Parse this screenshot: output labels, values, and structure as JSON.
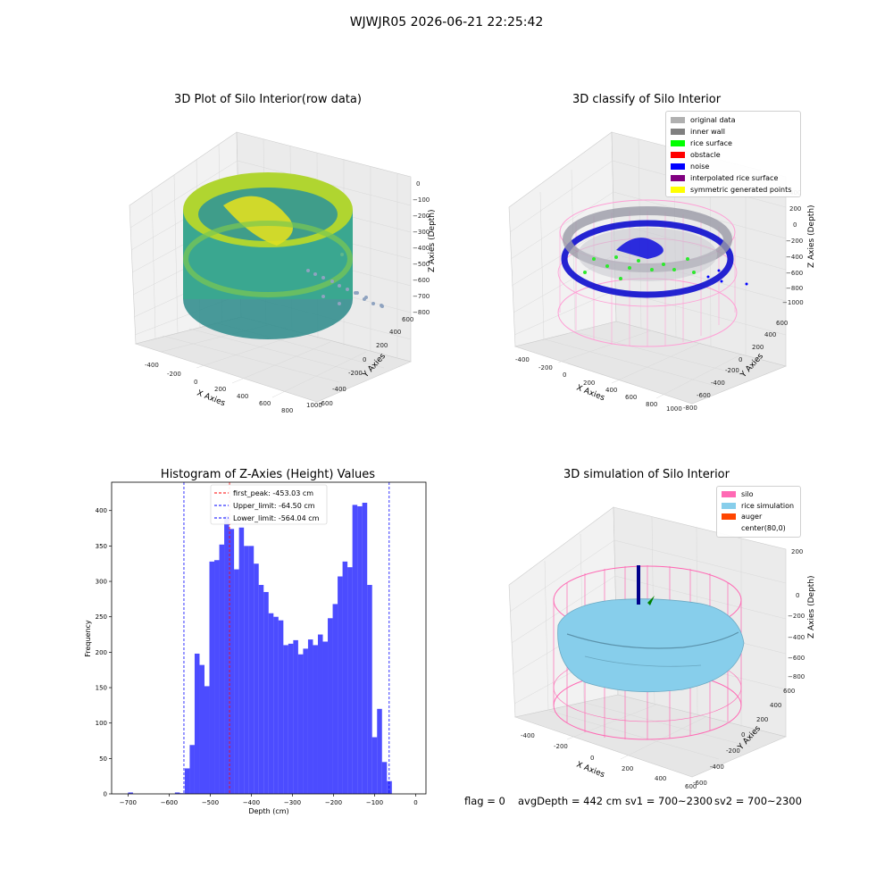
{
  "suptitle": "WJWJR05 2026-06-21 22:25:42",
  "panels": {
    "raw": {
      "title": "3D Plot of Silo Interior(row data)",
      "xlabel": "X Axies",
      "ylabel": "Y Axies",
      "zlabel": "Z Axies (Depth)",
      "xticks": [
        "-400",
        "-200",
        "0",
        "200",
        "400",
        "600",
        "800",
        "1000"
      ],
      "yticks": [
        "-600",
        "-400",
        "-200",
        "0",
        "200",
        "400",
        "600"
      ],
      "zticks": [
        "0",
        "−100",
        "−200",
        "−300",
        "−400",
        "−500",
        "−600",
        "−700",
        "−800"
      ]
    },
    "classify": {
      "title": "3D classify of Silo Interior",
      "xlabel": "X Axies",
      "ylabel": "Y Axies",
      "zlabel": "Z Axies (Depth)",
      "xticks": [
        "-400",
        "-200",
        "0",
        "200",
        "400",
        "600",
        "800",
        "1000"
      ],
      "yticks": [
        "-800",
        "-600",
        "-400",
        "-200",
        "0",
        "200",
        "400",
        "600"
      ],
      "zticks": [
        "400",
        "200",
        "0",
        "−200",
        "−400",
        "−600",
        "−800",
        "−1000"
      ],
      "legend": [
        {
          "label": "original data",
          "color": "#b0b0b0"
        },
        {
          "label": "inner wall",
          "color": "#808080"
        },
        {
          "label": "rice surface",
          "color": "#00ff00"
        },
        {
          "label": "obstacle",
          "color": "#ff0000"
        },
        {
          "label": "noise",
          "color": "#0000ff"
        },
        {
          "label": "interpolated rice surface",
          "color": "#800080"
        },
        {
          "label": "symmetric generated points",
          "color": "#ffff00"
        }
      ]
    },
    "sim": {
      "title": "3D simulation of Silo Interior",
      "xlabel": "X Axies",
      "ylabel": "Y Axies",
      "zlabel": "Z Axies (Depth)",
      "xticks": [
        "-400",
        "-200",
        "0",
        "200",
        "400",
        "600"
      ],
      "yticks": [
        "-600",
        "-400",
        "-200",
        "0",
        "200",
        "400",
        "600"
      ],
      "zticks": [
        "200",
        "0",
        "−200",
        "−400",
        "−600",
        "−800"
      ],
      "legend": [
        {
          "label": "silo",
          "color": "#ff69b4"
        },
        {
          "label": "rice simulation",
          "color": "#87ceeb"
        },
        {
          "label": "auger",
          "color": "#ff4500"
        },
        {
          "label": "center(80,0)",
          "color": ""
        }
      ]
    }
  },
  "stats": {
    "flag": "flag = 0",
    "avg": "avgDepth = 442 cm",
    "sv1": "sv1 = 700~2300",
    "sv2": "sv2 = 700~2300"
  },
  "chart_data": [
    {
      "type": "scatter",
      "title": "3D Plot of Silo Interior(row data)",
      "xlabel": "X Axies",
      "ylabel": "Y Axies",
      "zlabel": "Z Axies (Depth)",
      "xlim": [
        -500,
        1100
      ],
      "ylim": [
        -700,
        700
      ],
      "zlim": [
        -850,
        50
      ]
    },
    {
      "type": "scatter",
      "title": "3D classify of Silo Interior",
      "xlabel": "X Axies",
      "ylabel": "Y Axies",
      "zlabel": "Z Axies (Depth)",
      "xlim": [
        -500,
        1100
      ],
      "ylim": [
        -850,
        700
      ],
      "zlim": [
        -1050,
        450
      ]
    },
    {
      "type": "bar",
      "title": "Histogram of Z-Axies (Height) Values",
      "xlabel": "Depth (cm)",
      "ylabel": "Frequency",
      "xlim": [
        -740,
        25
      ],
      "ylim": [
        0,
        440
      ],
      "xticks": [
        -700,
        -600,
        -500,
        -400,
        -300,
        -200,
        -100,
        0
      ],
      "yticks": [
        0,
        50,
        100,
        150,
        200,
        250,
        300,
        350,
        400
      ],
      "color": "#0000ff",
      "bin_width": 12,
      "bin_starts": [
        -700,
        -586,
        -574,
        -562,
        -550,
        -538,
        -526,
        -514,
        -502,
        -490,
        -478,
        -466,
        -454,
        -442,
        -430,
        -418,
        -406,
        -394,
        -382,
        -370,
        -358,
        -346,
        -334,
        -322,
        -310,
        -298,
        -286,
        -274,
        -262,
        -250,
        -238,
        -226,
        -214,
        -202,
        -190,
        -178,
        -166,
        -154,
        -142,
        -130,
        -118,
        -106,
        -94,
        -82,
        -70,
        -58,
        -46,
        -34,
        -22,
        -10
      ],
      "values": [
        2,
        2,
        1,
        36,
        69,
        198,
        182,
        152,
        328,
        330,
        352,
        392,
        374,
        317,
        376,
        350,
        350,
        325,
        295,
        285,
        255,
        250,
        245,
        210,
        212,
        217,
        197,
        205,
        218,
        210,
        225,
        215,
        248,
        268,
        307,
        328,
        320,
        408,
        406,
        411,
        295,
        80,
        120,
        45,
        18,
        0,
        0,
        0,
        0,
        0
      ],
      "lines": [
        {
          "label": "first_peak: -453.03 cm",
          "x": -453.03,
          "color": "#ff0000"
        },
        {
          "label": "Upper_limit: -64.50 cm",
          "x": -64.5,
          "color": "#0000ff"
        },
        {
          "label": "Lower_limit: -564.04 cm",
          "x": -564.04,
          "color": "#0000ff"
        }
      ]
    },
    {
      "type": "area",
      "title": "3D simulation of Silo Interior",
      "xlabel": "X Axies",
      "ylabel": "Y Axies",
      "zlabel": "Z Axies (Depth)",
      "xlim": [
        -500,
        700
      ],
      "ylim": [
        -650,
        650
      ],
      "zlim": [
        -850,
        350
      ]
    }
  ]
}
